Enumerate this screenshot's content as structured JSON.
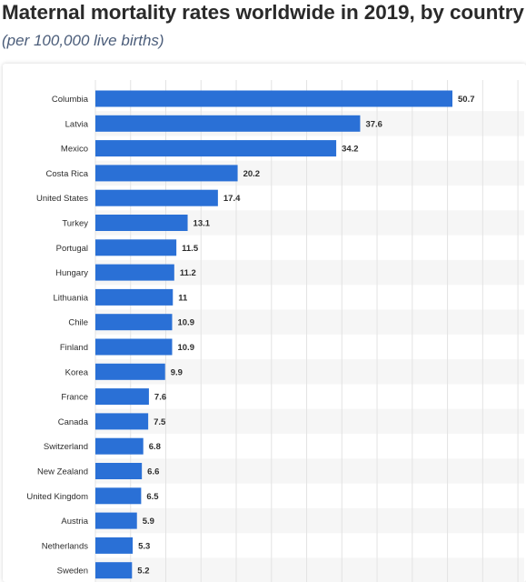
{
  "title": "Maternal mortality rates worldwide in 2019, by country",
  "subtitle": "(per 100,000 live births)",
  "colors": {
    "bar": "#2a70d6",
    "grid": "#e3e3e3",
    "stripe": "#f6f6f6"
  },
  "chart_data": {
    "type": "bar",
    "orientation": "horizontal",
    "title": "Maternal mortality rates worldwide in 2019, by country",
    "subtitle": "(per 100,000 live births)",
    "categories": [
      "Columbia",
      "Latvia",
      "Mexico",
      "Costa Rica",
      "United States",
      "Turkey",
      "Portugal",
      "Hungary",
      "Lithuania",
      "Chile",
      "Finland",
      "Korea",
      "France",
      "Canada",
      "Switzerland",
      "New Zealand",
      "United Kingdom",
      "Austria",
      "Netherlands",
      "Sweden"
    ],
    "values": [
      50.7,
      37.6,
      34.2,
      20.2,
      17.4,
      13.1,
      11.5,
      11.2,
      11,
      10.9,
      10.9,
      9.9,
      7.6,
      7.5,
      6.8,
      6.6,
      6.5,
      5.9,
      5.3,
      5.2
    ],
    "value_labels": [
      "50.7",
      "37.6",
      "34.2",
      "20.2",
      "17.4",
      "13.1",
      "11.5",
      "11.2",
      "11",
      "10.9",
      "10.9",
      "9.9",
      "7.6",
      "7.5",
      "6.8",
      "6.6",
      "6.5",
      "5.9",
      "5.3",
      "5.2"
    ],
    "xlim": [
      0,
      60
    ],
    "grid": true,
    "legend": "none"
  }
}
